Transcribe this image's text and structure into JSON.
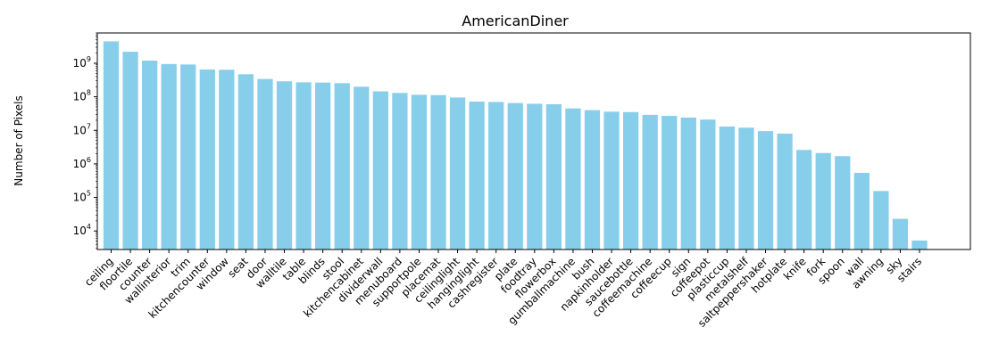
{
  "chart_data": {
    "type": "bar",
    "title": "AmericanDiner",
    "xlabel": "",
    "ylabel": "Number of Pixels",
    "yscale": "log",
    "ylim": [
      2800,
      8000000000
    ],
    "y_ticks": [
      10000,
      100000,
      1000000,
      10000000,
      100000000,
      1000000000
    ],
    "y_tick_labels": [
      {
        "base": "10",
        "exp": "4"
      },
      {
        "base": "10",
        "exp": "5"
      },
      {
        "base": "10",
        "exp": "6"
      },
      {
        "base": "10",
        "exp": "7"
      },
      {
        "base": "10",
        "exp": "8"
      },
      {
        "base": "10",
        "exp": "9"
      }
    ],
    "bar_color": "#87ceeb",
    "grid": false,
    "categories": [
      "ceiling",
      "floortile",
      "counter",
      "wallinterior",
      "trim",
      "kitchencounter",
      "window",
      "seat",
      "door",
      "walltile",
      "table",
      "blinds",
      "stool",
      "kitchencabinet",
      "dividerwall",
      "menuboard",
      "supportpole",
      "placemat",
      "ceilinglight",
      "hanginglight",
      "cashregister",
      "plate",
      "foodtray",
      "flowerbox",
      "gumballmachine",
      "bush",
      "napkinholder",
      "saucebottle",
      "coffeemachine",
      "coffeecup",
      "sign",
      "coffeepot",
      "plasticcup",
      "metalshelf",
      "saltpeppershaker",
      "hotplate",
      "knife",
      "fork",
      "spoon",
      "wall",
      "awning",
      "sky",
      "stairs"
    ],
    "values": [
      4500000000,
      2200000000,
      1200000000,
      950000000,
      920000000,
      650000000,
      640000000,
      470000000,
      340000000,
      290000000,
      270000000,
      265000000,
      255000000,
      200000000,
      145000000,
      130000000,
      115000000,
      112000000,
      95000000,
      72000000,
      70000000,
      65000000,
      62000000,
      60000000,
      45000000,
      40000000,
      36000000,
      35000000,
      29000000,
      27000000,
      24000000,
      21000000,
      13000000,
      12000000,
      9500000,
      8000000,
      2600000,
      2100000,
      1700000,
      540000,
      155000,
      23000,
      5200
    ]
  }
}
